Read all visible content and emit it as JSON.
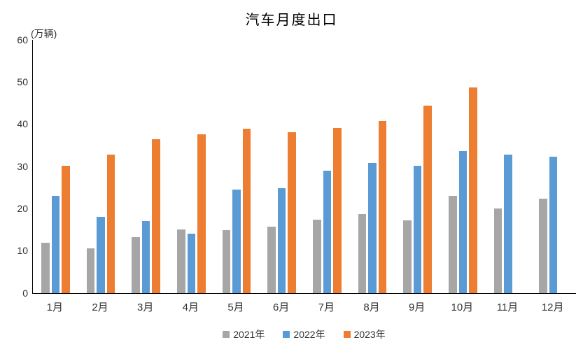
{
  "chart_data": {
    "type": "bar",
    "title": "汽车月度出口",
    "unit_label": "(万辆)",
    "categories": [
      "1月",
      "2月",
      "3月",
      "4月",
      "5月",
      "6月",
      "7月",
      "8月",
      "9月",
      "10月",
      "11月",
      "12月"
    ],
    "series": [
      {
        "name": "2021年",
        "color": "#A6A6A6",
        "values": [
          12.0,
          10.6,
          13.2,
          15.1,
          15.0,
          15.8,
          17.4,
          18.7,
          17.3,
          23.1,
          20.0,
          22.3
        ]
      },
      {
        "name": "2022年",
        "color": "#5B9BD5",
        "values": [
          23.1,
          18.0,
          17.0,
          14.1,
          24.5,
          24.9,
          29.0,
          30.8,
          30.1,
          33.7,
          32.9,
          32.4
        ]
      },
      {
        "name": "2023年",
        "color": "#ED7D31",
        "values": [
          30.1,
          32.9,
          36.4,
          37.6,
          38.9,
          38.2,
          39.2,
          40.8,
          44.4,
          48.8,
          null,
          null
        ]
      }
    ],
    "ylim": [
      0,
      60
    ],
    "yticks": [
      0,
      10,
      20,
      30,
      40,
      50,
      60
    ],
    "grid": false,
    "legend_position": "bottom",
    "background": "#FFFFFF",
    "axis_color": "#000000"
  }
}
